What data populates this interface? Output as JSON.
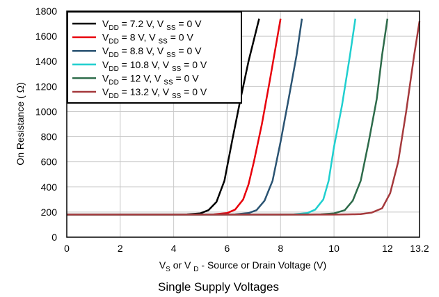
{
  "chart_data": {
    "type": "line",
    "title": "",
    "caption": "Single Supply Voltages",
    "xlabel": {
      "main": "V",
      "sub1": "S",
      "mid": " or V ",
      "sub2": "D",
      "rest": " - Source or Drain Voltage (V)"
    },
    "ylabel": "On Resistance (  Ω)",
    "xlim": [
      0,
      13.2
    ],
    "ylim": [
      0,
      1800
    ],
    "xticks": [
      "0",
      "2",
      "4",
      "6",
      "8",
      "10",
      "12",
      "13.2"
    ],
    "xtick_values": [
      0,
      2,
      4,
      6,
      8,
      10,
      12,
      13.2
    ],
    "yticks": [
      "0",
      "200",
      "400",
      "600",
      "800",
      "1000",
      "1200",
      "1400",
      "1600",
      "1800"
    ],
    "ytick_values": [
      0,
      200,
      400,
      600,
      800,
      1000,
      1200,
      1400,
      1600,
      1800
    ],
    "grid": true,
    "legend_position": "top-left",
    "series": [
      {
        "legend": {
          "main": "V",
          "sub": "DD",
          "text": " = 7.2 V, V ",
          "sub2": "SS",
          "tail": " = 0 V"
        },
        "color": "#000000",
        "x": [
          0,
          4.0,
          4.5,
          5.0,
          5.3,
          5.6,
          5.9,
          6.2,
          6.5,
          6.8,
          7.2
        ],
        "y": [
          180,
          180,
          182,
          190,
          215,
          280,
          450,
          780,
          1100,
          1400,
          1740
        ]
      },
      {
        "legend": {
          "main": "V",
          "sub": "DD",
          "text": " = 8 V, V ",
          "sub2": "SS",
          "tail": " = 0 V"
        },
        "color": "#e8000b",
        "x": [
          0,
          5.0,
          5.5,
          6.0,
          6.3,
          6.6,
          6.8,
          7.0,
          7.3,
          7.6,
          8.0
        ],
        "y": [
          180,
          180,
          182,
          192,
          220,
          300,
          420,
          600,
          900,
          1250,
          1740
        ]
      },
      {
        "legend": {
          "main": "V",
          "sub": "DD",
          "text": " = 8.8 V, V ",
          "sub2": "SS",
          "tail": " = 0 V"
        },
        "color": "#2a5372",
        "x": [
          0,
          5.8,
          6.3,
          6.8,
          7.1,
          7.4,
          7.7,
          8.0,
          8.3,
          8.6,
          8.8
        ],
        "y": [
          180,
          180,
          182,
          192,
          215,
          290,
          450,
          760,
          1100,
          1450,
          1740
        ]
      },
      {
        "legend": {
          "main": "V",
          "sub": "DD",
          "text": " = 10.8 V, V ",
          "sub2": "SS",
          "tail": " = 0 V"
        },
        "color": "#1fcfcf",
        "x": [
          0,
          8.0,
          8.5,
          9.0,
          9.3,
          9.6,
          9.8,
          10.0,
          10.3,
          10.6,
          10.8
        ],
        "y": [
          180,
          180,
          182,
          192,
          220,
          300,
          450,
          720,
          1050,
          1450,
          1740
        ]
      },
      {
        "legend": {
          "main": "V",
          "sub": "DD",
          "text": " = 12 V, V ",
          "sub2": "SS",
          "tail": " = 0 V"
        },
        "color": "#2d6b4a",
        "x": [
          0,
          9.0,
          9.5,
          10.0,
          10.4,
          10.7,
          11.0,
          11.3,
          11.6,
          11.8,
          12.0
        ],
        "y": [
          180,
          180,
          182,
          190,
          215,
          290,
          450,
          760,
          1100,
          1450,
          1740
        ]
      },
      {
        "legend": {
          "main": "V",
          "sub": "DD",
          "text": " = 13.2 V, V ",
          "sub2": "SS",
          "tail": " = 0 V"
        },
        "color": "#a5393c",
        "x": [
          0,
          10.0,
          10.5,
          11.0,
          11.4,
          11.8,
          12.1,
          12.4,
          12.7,
          13.0,
          13.2
        ],
        "y": [
          180,
          180,
          181,
          184,
          195,
          230,
          350,
          600,
          1000,
          1450,
          1720
        ]
      }
    ]
  }
}
